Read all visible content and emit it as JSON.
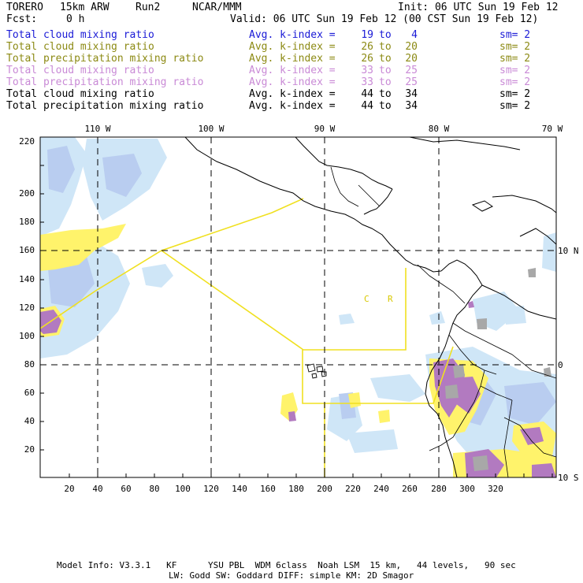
{
  "header": {
    "model": "TORERO",
    "resolution": "15km ARW",
    "run": "Run2",
    "center": "NCAR/MMM",
    "init": "Init: 06 UTC Sun 19 Feb 12",
    "fcst_label": "Fcst:",
    "fcst_value": "0 h",
    "valid": "Valid: 06 UTC Sun 19 Feb 12 (00 CST Sun 19 Feb 12)"
  },
  "fields": [
    {
      "label": "Total cloud mixing ratio",
      "avg": "Avg. k-index =",
      "k1": "19",
      "to": "to",
      "k2": "4",
      "sm": "sm= 2",
      "color": "#1a1ad6"
    },
    {
      "label": "Total cloud mixing ratio",
      "avg": "Avg. k-index =",
      "k1": "26",
      "to": "to",
      "k2": "20",
      "sm": "sm= 2",
      "color": "#8c8a14"
    },
    {
      "label": "Total precipitation mixing ratio",
      "avg": "Avg. k-index =",
      "k1": "26",
      "to": "to",
      "k2": "20",
      "sm": "sm= 2",
      "color": "#8c8a14"
    },
    {
      "label": "Total cloud mixing ratio",
      "avg": "Avg. k-index =",
      "k1": "33",
      "to": "to",
      "k2": "25",
      "sm": "sm= 2",
      "color": "#c98ad6"
    },
    {
      "label": "Total precipitation mixing ratio",
      "avg": "Avg. k-index =",
      "k1": "33",
      "to": "to",
      "k2": "25",
      "sm": "sm= 2",
      "color": "#c98ad6"
    },
    {
      "label": "Total cloud mixing ratio",
      "avg": "Avg. k-index =",
      "k1": "44",
      "to": "to",
      "k2": "34",
      "sm": "sm= 2",
      "color": "#000000"
    },
    {
      "label": "Total precipitation mixing ratio",
      "avg": "Avg. k-index =",
      "k1": "44",
      "to": "to",
      "k2": "34",
      "sm": "sm= 2",
      "color": "#000000"
    }
  ],
  "map": {
    "x_ticks": [
      "20",
      "40",
      "60",
      "80",
      "100",
      "120",
      "140",
      "160",
      "180",
      "200",
      "220",
      "240",
      "260",
      "280",
      "300",
      "320"
    ],
    "y_ticks": [
      "20",
      "40",
      "60",
      "80",
      "100",
      "120",
      "140",
      "160",
      "180",
      "200",
      "220"
    ],
    "lon_labels": [
      "110 W",
      "100 W",
      "90 W",
      "80 W",
      "70 W"
    ],
    "lat_labels": [
      "10 N",
      "0",
      "10 S"
    ],
    "region_labels": [
      "C",
      "R"
    ],
    "colors": {
      "light_blue": "#cfe6f7",
      "mid_blue": "#b9cdf0",
      "yellow": "#fff36b",
      "purple": "#b27ac0",
      "gray": "#a8a8a8",
      "domain_outline": "#f0e020"
    }
  },
  "footer": {
    "line1": "Model Info: V3.3.1   KF      YSU PBL  WDM 6class  Noah LSM  15 km,   44 levels,   90 sec",
    "line2": "LW: Godd SW: Goddard DIFF: simple KM: 2D Smagor"
  }
}
